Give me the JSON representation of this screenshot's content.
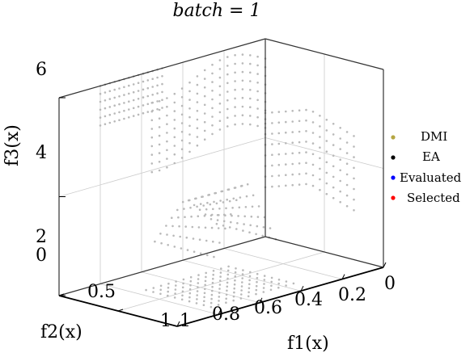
{
  "chart_data": {
    "type": "scatter",
    "title": "batch = 1",
    "xlabel": "f1(x)",
    "ylabel": "f2(x)",
    "zlabel": "f3(x)",
    "xlim": [
      0,
      1
    ],
    "ylim": [
      0,
      1
    ],
    "zlim": [
      2,
      6
    ],
    "x_ticks": [
      "0",
      "0.2",
      "0.4",
      "0.6",
      "0.8",
      "1"
    ],
    "y_ticks": [
      "0",
      "0.5",
      "1"
    ],
    "z_ticks": [
      "2",
      "4",
      "6"
    ],
    "grid": true,
    "legend_position": "right",
    "legend": [
      {
        "name": "DMI",
        "color": "#b5a642"
      },
      {
        "name": "EA",
        "color": "#000000"
      },
      {
        "name": "Evaluated",
        "color": "#0000ff"
      },
      {
        "name": "Selected",
        "color": "#ff0000"
      }
    ],
    "projections": {
      "back_wall_f1_f3": {
        "f1": [
          0.0,
          0.55
        ],
        "f3": [
          4.2,
          5.6
        ],
        "color": "#bbbbbb"
      },
      "side_wall_f2_f3": {
        "f2": [
          0.0,
          0.75
        ],
        "f3": [
          3.0,
          4.5
        ],
        "color": "#bbbbbb"
      },
      "back_wall_top": {
        "f1": [
          0.5,
          0.8
        ],
        "f3": [
          5.2,
          6.0
        ],
        "color": "#bbbbbb"
      },
      "floor_f1_f2": {
        "f1": [
          0.35,
          0.75
        ],
        "f2": [
          0.3,
          0.85
        ],
        "color": "#bbbbbb"
      },
      "central_cloud": {
        "f1": [
          0.35,
          0.65
        ],
        "f2": [
          0.2,
          0.7
        ],
        "f3": [
          2.8,
          4.2
        ],
        "color": "#bbbbbb"
      }
    }
  }
}
